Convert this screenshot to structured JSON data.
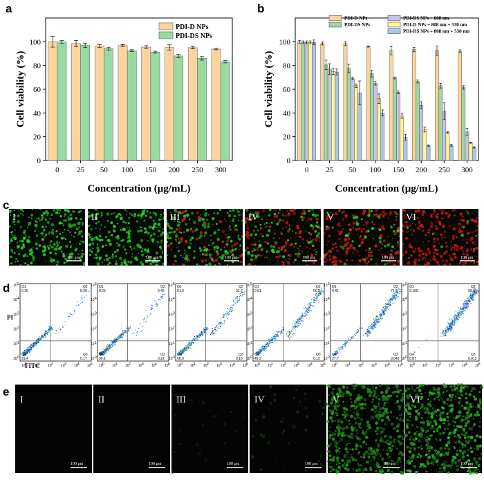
{
  "panels": {
    "a": "a",
    "b": "b",
    "c": "c",
    "d": "d",
    "e": "e"
  },
  "colors": {
    "orange": "#fdd49e",
    "green": "#99d9a2",
    "purple": "#c9c1e3",
    "yellow": "#fdf59a",
    "blue": "#a9c6f0",
    "gfp": "#3cc43c",
    "pi_red": "#d8261e",
    "flow_blue": "#1a3cd8"
  },
  "chart_data": [
    {
      "id": "a",
      "type": "bar",
      "title": "",
      "xlabel": "Concentration (μg/mL)",
      "ylabel": "Cell viability (%)",
      "ylim": [
        0,
        120
      ],
      "yticks": [
        "0",
        "20",
        "40",
        "60",
        "80",
        "100"
      ],
      "categories": [
        "0",
        "25",
        "50",
        "100",
        "150",
        "200",
        "250",
        "300"
      ],
      "legend_position": "top-right",
      "series": [
        {
          "name": "PDI-D NPs",
          "color": "#fdd49e",
          "values": [
            100,
            98.5,
            96.5,
            96.8,
            95.5,
            95.2,
            95,
            93.8
          ],
          "errors": [
            4.5,
            2.5,
            1.2,
            0.8,
            1.2,
            2.2,
            1,
            0.6
          ]
        },
        {
          "name": "PDI-DS NPs",
          "color": "#99d9a2",
          "values": [
            99.8,
            97,
            94.2,
            92.5,
            91.2,
            88,
            86,
            83.2
          ],
          "errors": [
            1.2,
            1.8,
            1.2,
            0.8,
            0.8,
            1.5,
            1.5,
            1
          ]
        }
      ]
    },
    {
      "id": "b",
      "type": "bar",
      "title": "",
      "xlabel": "Concentration (μg/mL)",
      "ylabel": "Cell viability (%)",
      "ylim": [
        0,
        120
      ],
      "yticks": [
        "0",
        "20",
        "40",
        "60",
        "80",
        "100"
      ],
      "categories": [
        "0",
        "25",
        "50",
        "100",
        "150",
        "200",
        "250",
        "300"
      ],
      "legend_position": "top",
      "series": [
        {
          "name": "PDI-D NPs",
          "color": "#fdd49e",
          "values": [
            100,
            98.5,
            98.5,
            96,
            92.5,
            93.5,
            92.5,
            92
          ],
          "errors": [
            1.2,
            1.2,
            1.5,
            0.5,
            3.5,
            1.8,
            4,
            1.2
          ]
        },
        {
          "name": "PDI-DS NPs",
          "color": "#99d9a2",
          "values": [
            99.5,
            80.5,
            77.5,
            73,
            69.5,
            66.5,
            63,
            61.5
          ],
          "errors": [
            1.2,
            4,
            3.5,
            3,
            0.8,
            1.2,
            2,
            1.5
          ]
        },
        {
          "name": "PDI-DS NPs + 808 nm",
          "color": "#c9c1e3",
          "values": [
            99.5,
            77,
            69,
            65,
            57.5,
            46.5,
            41.5,
            24
          ],
          "errors": [
            1.2,
            4.5,
            1.2,
            1.5,
            1.2,
            3,
            7,
            3
          ]
        },
        {
          "name": "PDI-D NPs + 808 nm + 530 nm",
          "color": "#fdf59a",
          "values": [
            99.5,
            75,
            63,
            52,
            37.5,
            26,
            23.5,
            15
          ],
          "errors": [
            1.2,
            2.5,
            1.5,
            4,
            2,
            2,
            0.6,
            0.5
          ]
        },
        {
          "name": "PDI-DS NPs + 808 nm + 530 nm",
          "color": "#a9c6f0",
          "values": [
            99.5,
            74.5,
            57,
            40,
            19.5,
            12.5,
            12.8,
            11
          ],
          "errors": [
            2,
            2.5,
            10,
            2.5,
            2.5,
            0.5,
            0.8,
            0.5
          ]
        }
      ]
    }
  ],
  "panel_c": {
    "labels": [
      "I",
      "II",
      "III",
      "IV",
      "V",
      "VI"
    ],
    "scale_bar": "100 μm",
    "red_fraction": [
      0,
      0,
      0.3,
      0.55,
      0.75,
      0.95
    ]
  },
  "panel_d": {
    "y_axis_label": "PI",
    "x_axis_label": "FITC",
    "tick_10": "10",
    "tick_exps": [
      "0",
      "1",
      "2",
      "3",
      "4",
      "5"
    ],
    "plots": [
      {
        "q1_label": "Q1",
        "q1": "0.16",
        "q2_label": "Q2",
        "q2": "8.26",
        "q3_label": "Q3",
        "q3": "0.17",
        "q4_label": "Q4",
        "q4": "91.4"
      },
      {
        "q1_label": "Q1",
        "q1": "0.25",
        "q2_label": "Q2",
        "q2": "9.45",
        "q3_label": "Q3",
        "q3": "0.22",
        "q4_label": "Q4",
        "q4": "90.1"
      },
      {
        "q1_label": "Q1",
        "q1": "0.13",
        "q2_label": "Q2",
        "q2": "31.7",
        "q3_label": "Q3",
        "q3": "0.16",
        "q4_label": "Q4",
        "q4": "68.0"
      },
      {
        "q1_label": "Q1",
        "q1": "0.51",
        "q2_label": "Q2",
        "q2": "50.2",
        "q3_label": "Q3",
        "q3": "0.12",
        "q4_label": "Q4",
        "q4": "49.2"
      },
      {
        "q1_label": "Q1",
        "q1": "0.41",
        "q2_label": "Q2",
        "q2": "71.9",
        "q3_label": "Q3",
        "q3": "0.043",
        "q4_label": "Q4",
        "q4": "27.7"
      },
      {
        "q1_label": "Q1",
        "q1": "0.100",
        "q2_label": "Q2",
        "q2": "99.0",
        "q3_label": "Q3",
        "q3": "0.012",
        "q4_label": "Q4",
        "q4": "0.87"
      }
    ]
  },
  "panel_e": {
    "labels": [
      "I",
      "II",
      "III",
      "IV",
      "V",
      "VI"
    ],
    "scale_bar": "100 μm",
    "green_intensity": [
      0,
      0,
      0.04,
      0.08,
      0.75,
      0.9
    ]
  }
}
